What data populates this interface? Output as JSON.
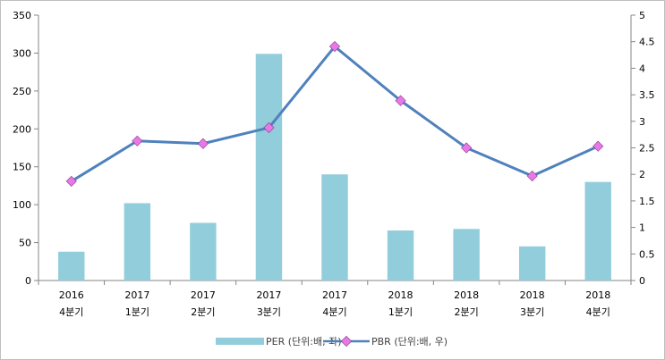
{
  "chart_data": {
    "type": "bar+line",
    "title": "",
    "categories": [
      [
        "2016",
        "4분기"
      ],
      [
        "2017",
        "1분기"
      ],
      [
        "2017",
        "2분기"
      ],
      [
        "2017",
        "3분기"
      ],
      [
        "2017",
        "4분기"
      ],
      [
        "2018",
        "1분기"
      ],
      [
        "2018",
        "2분기"
      ],
      [
        "2018",
        "3분기"
      ],
      [
        "2018",
        "4분기"
      ]
    ],
    "series": [
      {
        "name": "PER (단위:배, 좌)",
        "type": "bar",
        "axis": "left",
        "color": "#92CDDC",
        "values": [
          38,
          102,
          76,
          299,
          140,
          66,
          68,
          45,
          130
        ]
      },
      {
        "name": "PBR (단위:배, 우)",
        "type": "line",
        "axis": "right",
        "color": "#4F81BD",
        "marker_color": "#E679E6",
        "values": [
          1.87,
          2.63,
          2.58,
          2.88,
          4.41,
          3.39,
          2.5,
          1.97,
          2.53
        ]
      }
    ],
    "y_left": {
      "min": 0,
      "max": 350,
      "ticks": [
        "0",
        "50",
        "100",
        "150",
        "200",
        "250",
        "300",
        "350"
      ]
    },
    "y_right": {
      "min": 0,
      "max": 5,
      "ticks": [
        "0",
        "0.5",
        "1",
        "1.5",
        "2",
        "2.5",
        "3",
        "3.5",
        "4",
        "4.5",
        "5"
      ]
    },
    "grid": false,
    "legend": "bottom"
  }
}
